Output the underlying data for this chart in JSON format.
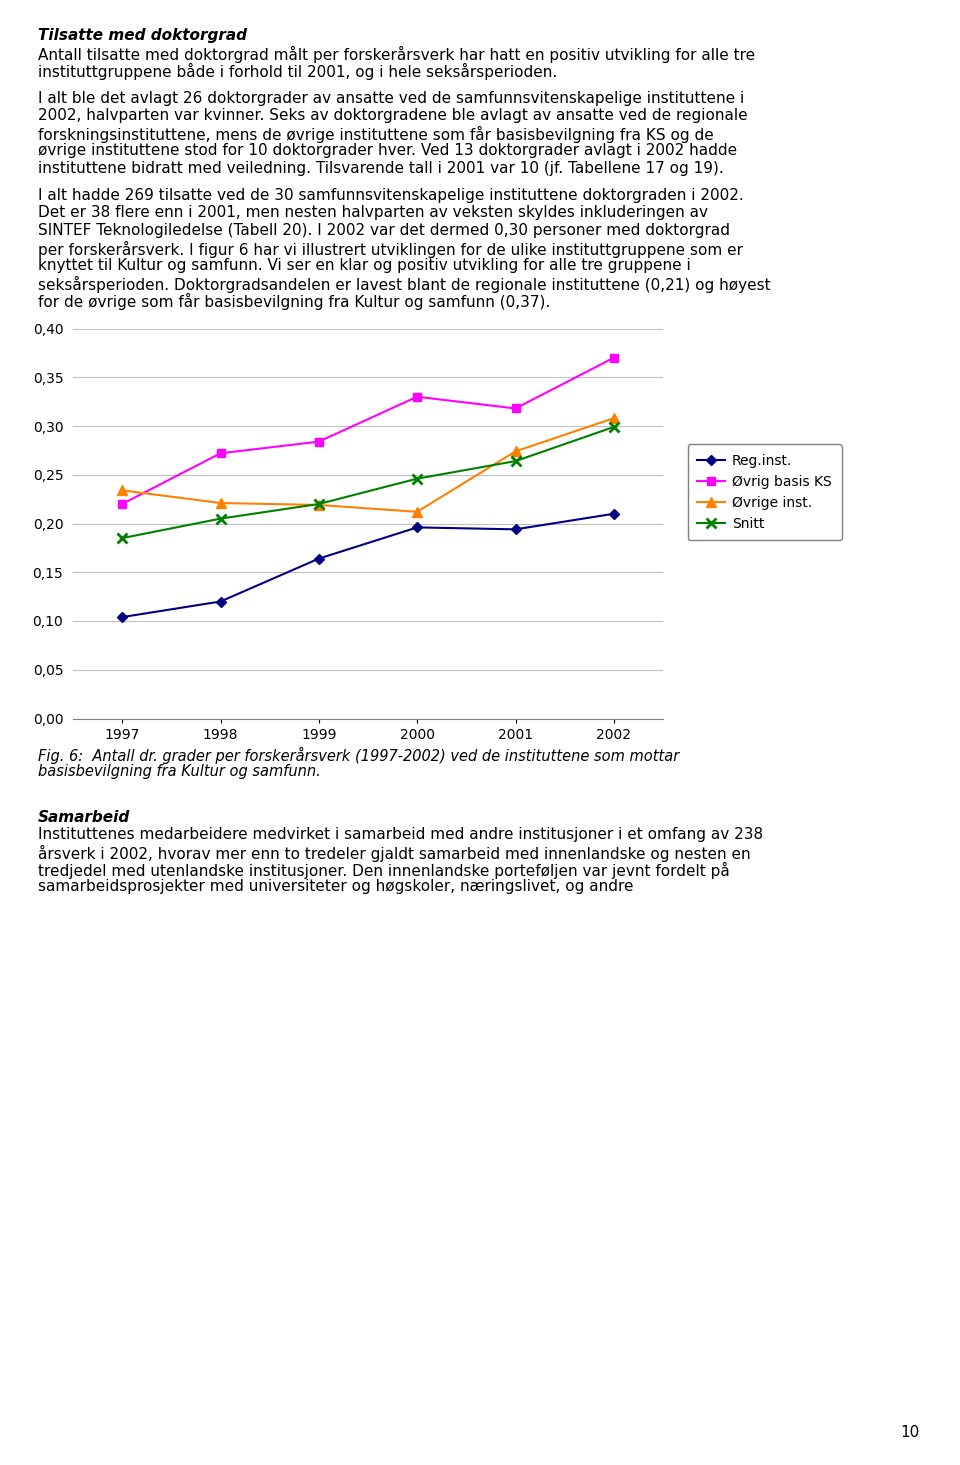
{
  "years": [
    1997,
    1998,
    1999,
    2000,
    2001,
    2002
  ],
  "reg_inst": [
    0.104,
    0.12,
    0.164,
    0.196,
    0.194,
    0.21
  ],
  "ovrig_basis_ks": [
    0.22,
    0.272,
    0.284,
    0.33,
    0.318,
    0.37
  ],
  "ovrige_inst": [
    0.234,
    0.221,
    0.219,
    0.212,
    0.274,
    0.308
  ],
  "snitt": [
    0.185,
    0.205,
    0.22,
    0.246,
    0.264,
    0.299
  ],
  "reg_inst_color": "#000080",
  "ovrig_basis_ks_color": "#FF00FF",
  "ovrige_inst_color": "#FF8000",
  "snitt_color": "#008000",
  "ylim": [
    0.0,
    0.4
  ],
  "yticks": [
    0.0,
    0.05,
    0.1,
    0.15,
    0.2,
    0.25,
    0.3,
    0.35,
    0.4
  ],
  "legend_labels": [
    "Reg.inst.",
    "Øvrig basis KS",
    "Øvrige inst.",
    "Snitt"
  ],
  "page_number": "10",
  "chart_bg": "#FFFFFF",
  "grid_color": "#C0C0C0",
  "title_italic_bold": "Tilsatte med doktorgrad",
  "para1_lines": [
    "Antall tilsatte med doktorgrad målt per forskerårsverk har hatt en positiv utvikling for alle tre",
    "instituttgruppene både i forhold til 2001, og i hele seksårsperioden."
  ],
  "para2_lines": [
    "I alt ble det avlagt 26 doktorgrader av ansatte ved de samfunnsvitenskapelige instituttene i",
    "2002, halvparten var kvinner. Seks av doktorgradene ble avlagt av ansatte ved de regionale",
    "forskningsinstituttene, mens de øvrige instituttene som får basisbevilgning fra KS og de",
    "øvrige instituttene stod for 10 doktorgrader hver. Ved 13 doktorgrader avlagt i 2002 hadde",
    "instituttene bidratt med veiledning. Tilsvarende tall i 2001 var 10 (jf. Tabellene 17 og 19)."
  ],
  "para3_lines": [
    "I alt hadde 269 tilsatte ved de 30 samfunnsvitenskapelige instituttene doktorgraden i 2002.",
    "Det er 38 flere enn i 2001, men nesten halvparten av veksten skyldes inkluderingen av",
    "SINTEF Teknologiledelse (Tabell 20). I 2002 var det dermed 0,30 personer med doktorgrad",
    "per forskerårsverk. I figur 6 har vi illustrert utviklingen for de ulike instituttgruppene som er",
    "knyttet til Kultur og samfunn. Vi ser en klar og positiv utvikling for alle tre gruppene i",
    "seksårsperioden. Doktorgradsandelen er lavest blant de regionale instituttene (0,21) og høyest",
    "for de øvrige som får basisbevilgning fra Kultur og samfunn (0,37)."
  ],
  "caption_line1": "Fig. 6:  Antall dr. grader per forskerårsverk (1997-2002) ved de instituttene som mottar",
  "caption_line2": "basisbevilgning fra Kultur og samfunn.",
  "samarbeid_title": "Samarbeid",
  "samarbeid_lines": [
    "Instituttenes medarbeidere medvirket i samarbeid med andre institusjoner i et omfang av 238",
    "årsverk i 2002, hvorav mer enn to tredeler gjaldt samarbeid med innenlandske og nesten en",
    "tredjedel med utenlandske institusjoner. Den innenlandske porteføljen var jevnt fordelt på",
    "samarbeidsprosjekter med universiteter og høgskoler, næringslivet, og andre"
  ]
}
